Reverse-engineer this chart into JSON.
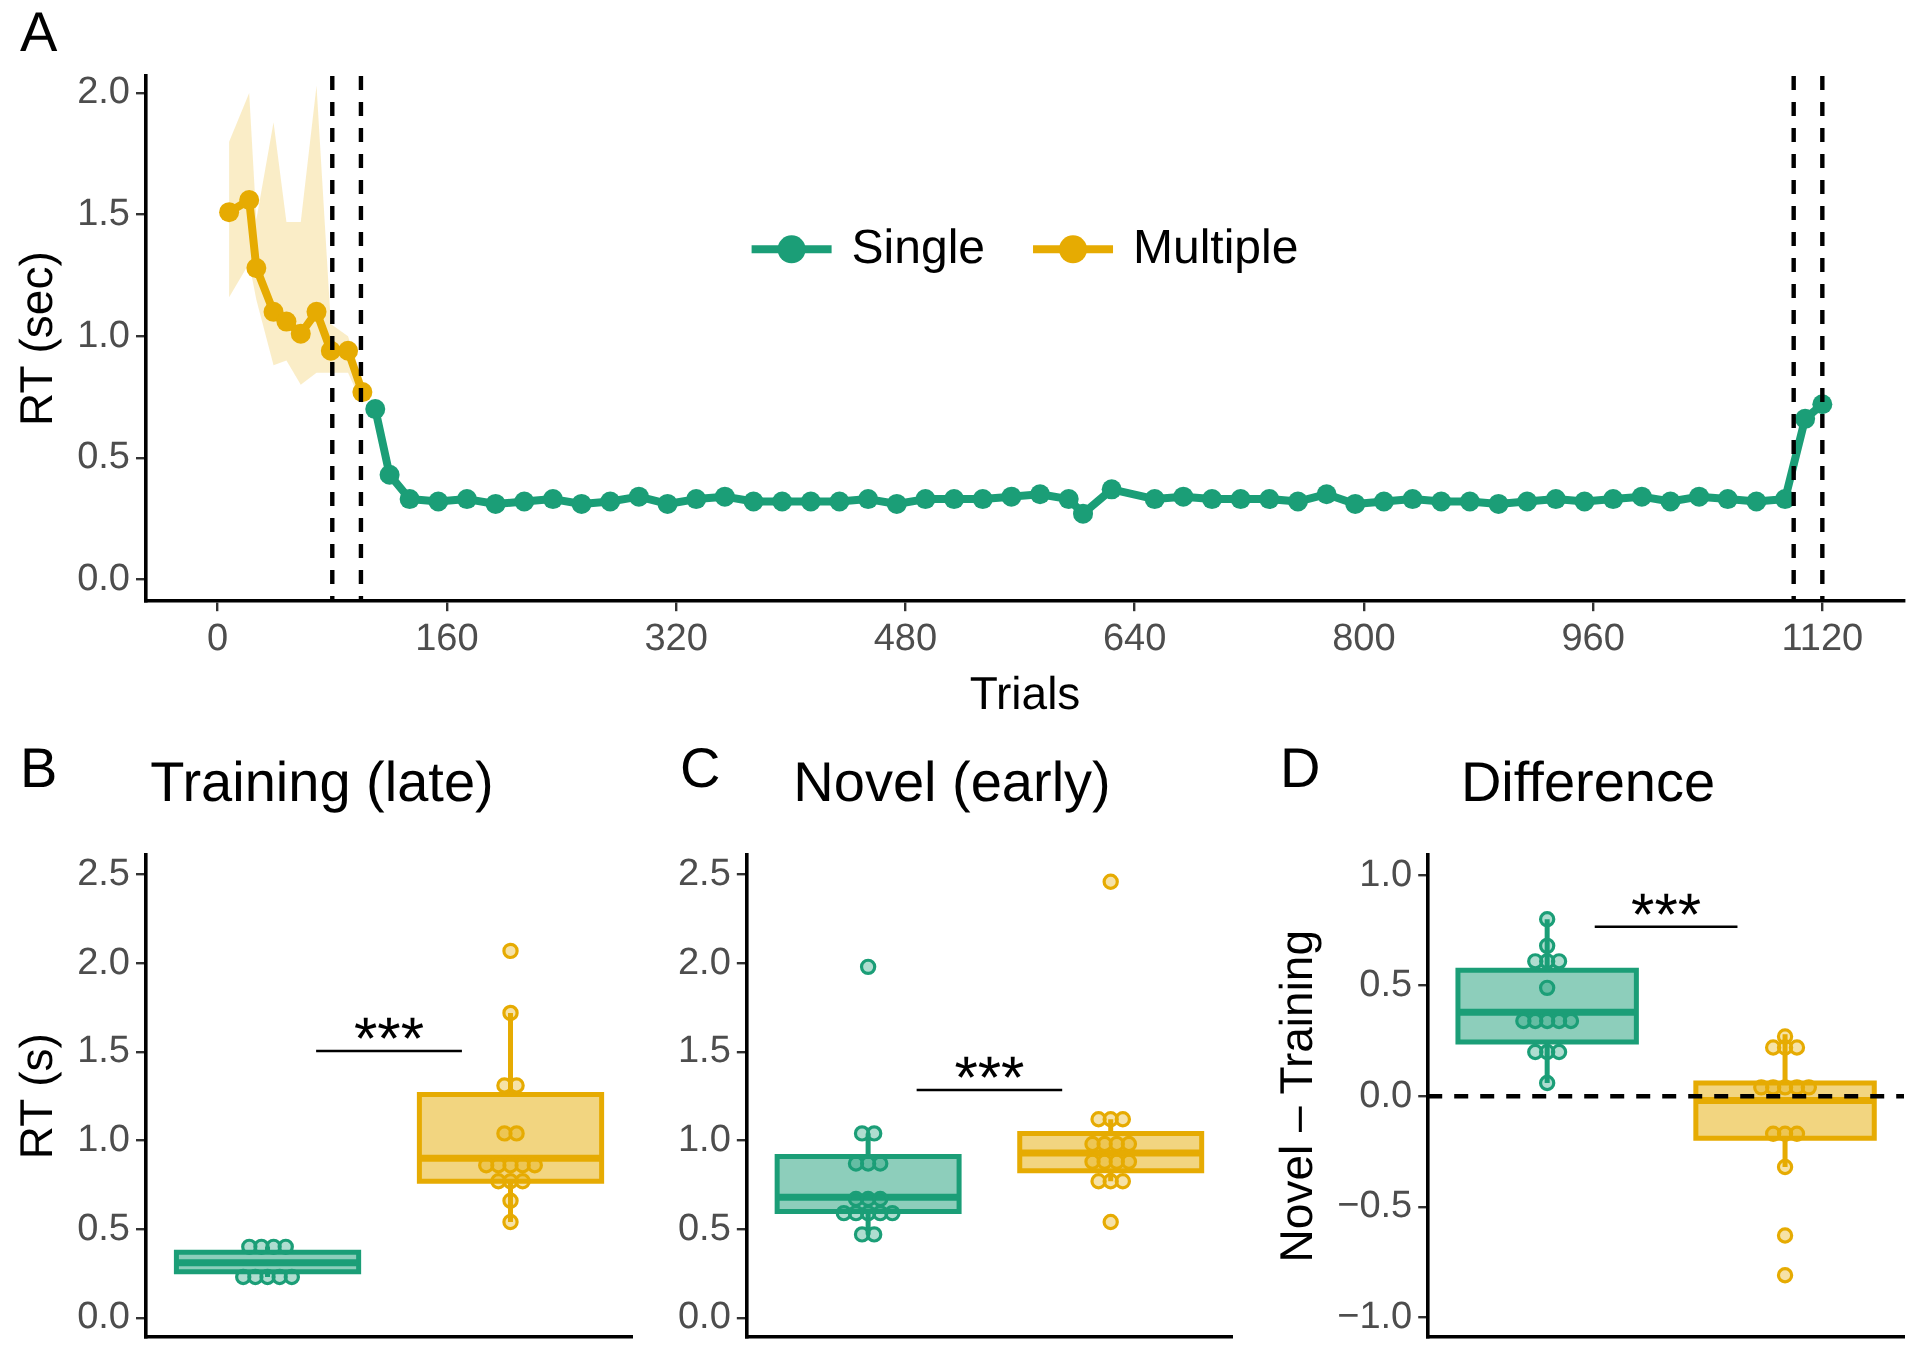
{
  "chart_data": [
    {
      "type": "line",
      "xlabel": "Trials",
      "ylabel": "RT (sec)",
      "annotations": [
        "A"
      ],
      "legend": "top",
      "marker": "circle",
      "line_style": "solid",
      "grid": false,
      "xlim": [
        -50,
        1177
      ],
      "xticks": [
        0,
        160,
        320,
        480,
        640,
        800,
        960,
        1120
      ],
      "ylim": [
        -0.09,
        2.07
      ],
      "yticks": [
        {
          "value": 0,
          "label": "0.0"
        },
        {
          "value": 0.5,
          "label": "0.5"
        },
        {
          "value": 1,
          "label": "1.0"
        },
        {
          "value": 1.5,
          "label": "1.5"
        },
        {
          "value": 2,
          "label": "2.0"
        }
      ],
      "ref_lines": [
        {
          "axis": "x",
          "value": 80,
          "color": "#000000",
          "line_style": "dashed"
        },
        {
          "axis": "x",
          "value": 100,
          "color": "#000000",
          "line_style": "dashed"
        },
        {
          "axis": "x",
          "value": 1100,
          "color": "#000000",
          "line_style": "dashed"
        },
        {
          "axis": "x",
          "value": 1120,
          "color": "#000000",
          "line_style": "dashed"
        }
      ],
      "series": [
        {
          "name": "Single",
          "color": "#1b9e77",
          "x": [
            110,
            120,
            134,
            154,
            174,
            194,
            214,
            234,
            254,
            274,
            294,
            314,
            334,
            354,
            374,
            394,
            414,
            434,
            454,
            474,
            494,
            514,
            534,
            554,
            574,
            594,
            604,
            624,
            654,
            674,
            694,
            714,
            734,
            754,
            774,
            794,
            814,
            834,
            854,
            874,
            894,
            914,
            934,
            954,
            974,
            994,
            1014,
            1034,
            1054,
            1074,
            1094,
            1108,
            1120
          ],
          "values": [
            0.7,
            0.43,
            0.33,
            0.32,
            0.33,
            0.31,
            0.32,
            0.33,
            0.31,
            0.32,
            0.34,
            0.31,
            0.33,
            0.34,
            0.32,
            0.32,
            0.32,
            0.32,
            0.33,
            0.31,
            0.33,
            0.33,
            0.33,
            0.34,
            0.35,
            0.33,
            0.27,
            0.37,
            0.33,
            0.34,
            0.33,
            0.33,
            0.33,
            0.32,
            0.35,
            0.31,
            0.32,
            0.33,
            0.32,
            0.32,
            0.31,
            0.32,
            0.33,
            0.32,
            0.33,
            0.34,
            0.32,
            0.34,
            0.33,
            0.32,
            0.33,
            0.66,
            0.72
          ]
        },
        {
          "name": "Multiple",
          "color": "#e6ab02",
          "x": [
            8,
            22,
            27,
            39,
            48,
            58,
            69,
            79,
            91,
            101
          ],
          "values": [
            1.51,
            1.56,
            1.28,
            1.1,
            1.06,
            1.01,
            1.1,
            0.94,
            0.94,
            0.77
          ],
          "lower": [
            1.16,
            1.3,
            1.15,
            0.88,
            0.9,
            0.8,
            0.85,
            0.85,
            0.85,
            0.72
          ],
          "upper": [
            1.8,
            2.0,
            1.48,
            1.88,
            1.47,
            1.47,
            2.03,
            1.05,
            1.0,
            0.82
          ]
        }
      ]
    },
    {
      "type": "box",
      "title": "Training (late)",
      "ylabel": "RT (s)",
      "annotations": [
        "B",
        "***"
      ],
      "grid": false,
      "tick_labels": "y",
      "categories": [
        null,
        null
      ],
      "colors": [
        "#1b9e77",
        "#e6ab02"
      ],
      "ylim": [
        -0.11,
        2.61
      ],
      "yticks": [
        {
          "value": 0,
          "label": "0.0"
        },
        {
          "value": 0.5,
          "label": "0.5"
        },
        {
          "value": 1,
          "label": "1.0"
        },
        {
          "value": 1.5,
          "label": "1.5"
        },
        {
          "value": 2,
          "label": "2.0"
        },
        {
          "value": 2.5,
          "label": "2.5"
        }
      ],
      "boxes": [
        {
          "low": 0.23,
          "q1": 0.26,
          "median": 0.31,
          "q3": 0.37,
          "high": 0.4,
          "outliers": [
            0.4,
            0.4,
            0.4,
            0.4,
            0.23,
            0.23,
            0.23,
            0.23,
            0.23
          ]
        },
        {
          "low": 0.54,
          "q1": 0.77,
          "median": 0.9,
          "q3": 1.26,
          "high": 1.72,
          "outliers": [
            2.07,
            1.72,
            1.31,
            1.31,
            1.04,
            1.04,
            0.86,
            0.86,
            0.86,
            0.86,
            0.86,
            0.77,
            0.77,
            0.77,
            0.66,
            0.54
          ]
        }
      ]
    },
    {
      "type": "box",
      "title": "Novel (early)",
      "annotations": [
        "C",
        "***"
      ],
      "grid": false,
      "tick_labels": "y",
      "categories": [
        null,
        null
      ],
      "colors": [
        "#1b9e77",
        "#e6ab02"
      ],
      "ylim": [
        -0.11,
        2.61
      ],
      "yticks": [
        {
          "value": 0,
          "label": "0.0"
        },
        {
          "value": 0.5,
          "label": "0.5"
        },
        {
          "value": 1,
          "label": "1.0"
        },
        {
          "value": 1.5,
          "label": "1.5"
        },
        {
          "value": 2,
          "label": "2.0"
        },
        {
          "value": 2.5,
          "label": "2.5"
        }
      ],
      "boxes": [
        {
          "low": 0.47,
          "q1": 0.6,
          "median": 0.68,
          "q3": 0.91,
          "high": 1.04,
          "outliers": [
            1.98,
            1.04,
            1.04,
            0.87,
            0.87,
            0.87,
            0.67,
            0.67,
            0.67,
            0.59,
            0.59,
            0.59,
            0.59,
            0.59,
            0.47,
            0.47
          ]
        },
        {
          "low": 0.77,
          "q1": 0.83,
          "median": 0.93,
          "q3": 1.04,
          "high": 1.12,
          "outliers": [
            2.46,
            1.12,
            1.12,
            1.12,
            0.98,
            0.98,
            0.98,
            0.98,
            0.88,
            0.88,
            0.88,
            0.88,
            0.77,
            0.77,
            0.77,
            0.54
          ]
        }
      ]
    },
    {
      "type": "box",
      "title": "Difference",
      "ylabel": "Novel – Training",
      "annotations": [
        "D",
        "***"
      ],
      "grid": false,
      "tick_labels": "y",
      "categories": [
        null,
        null
      ],
      "colors": [
        "#1b9e77",
        "#e6ab02"
      ],
      "ylim": [
        -1.09,
        1.09
      ],
      "yticks": [
        {
          "value": -1,
          "label": "−1.0"
        },
        {
          "value": -0.5,
          "label": "−0.5"
        },
        {
          "value": 0,
          "label": "0.0"
        },
        {
          "value": 0.5,
          "label": "0.5"
        },
        {
          "value": 1,
          "label": "1.0"
        }
      ],
      "ref_lines": [
        {
          "axis": "y",
          "value": 0,
          "color": "#000000",
          "line_style": "dashed"
        }
      ],
      "boxes": [
        {
          "low": 0.06,
          "q1": 0.245,
          "median": 0.38,
          "q3": 0.57,
          "high": 0.8,
          "outliers": [
            0.8,
            0.68,
            0.61,
            0.61,
            0.61,
            0.49,
            0.34,
            0.34,
            0.34,
            0.34,
            0.34,
            0.2,
            0.2,
            0.2,
            0.06
          ]
        },
        {
          "low": -0.32,
          "q1": -0.19,
          "median": -0.02,
          "q3": 0.06,
          "high": 0.28,
          "outliers": [
            0.27,
            0.22,
            0.22,
            0.22,
            0.04,
            0.04,
            0.04,
            0.04,
            0.04,
            -0.17,
            -0.17,
            -0.17,
            -0.32,
            -0.63,
            -0.81
          ]
        }
      ]
    }
  ]
}
